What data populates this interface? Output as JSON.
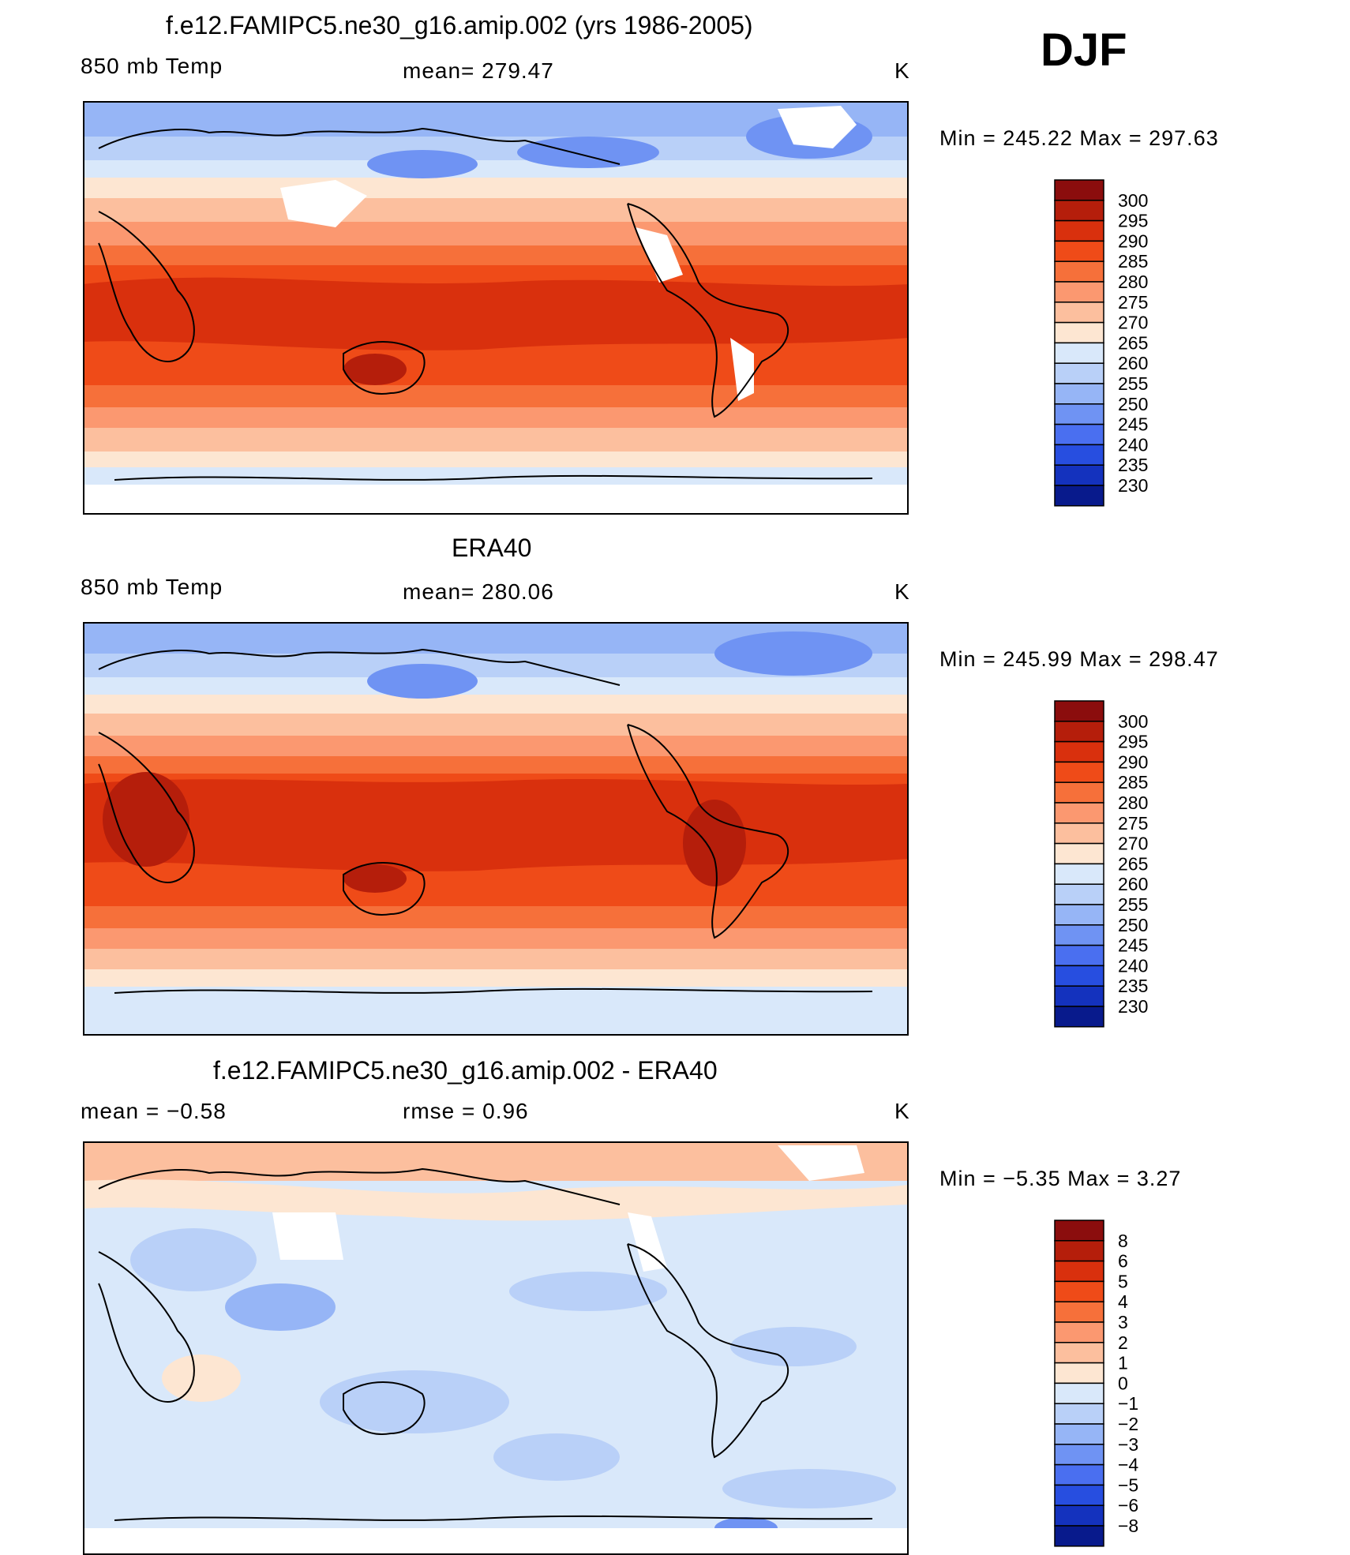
{
  "season": "DJF",
  "panels": [
    {
      "title": "f.e12.FAMIPC5.ne30_g16.amip.002 (yrs 1986-2005)",
      "left_label": "850 mb Temp",
      "center_label": "mean= 279.47",
      "units": "K",
      "min_max": "Min = 245.22 Max = 297.63",
      "colorbar": {
        "labels": [
          "300",
          "295",
          "290",
          "285",
          "280",
          "275",
          "270",
          "265",
          "260",
          "255",
          "250",
          "245",
          "240",
          "235",
          "230"
        ],
        "colors": [
          "#8b0d0d",
          "#b51e0b",
          "#d9300d",
          "#ef4b18",
          "#f6703a",
          "#fb9870",
          "#fcbf9e",
          "#fde6d2",
          "#d9e8fa",
          "#b9d0f8",
          "#96b5f6",
          "#6f93f3",
          "#4a6ff0",
          "#274ee0",
          "#1432be",
          "#081a8c"
        ]
      }
    },
    {
      "title": "ERA40",
      "left_label": "850 mb Temp",
      "center_label": "mean= 280.06",
      "units": "K",
      "min_max": "Min = 245.99 Max = 298.47",
      "colorbar": {
        "labels": [
          "300",
          "295",
          "290",
          "285",
          "280",
          "275",
          "270",
          "265",
          "260",
          "255",
          "250",
          "245",
          "240",
          "235",
          "230"
        ],
        "colors": [
          "#8b0d0d",
          "#b51e0b",
          "#d9300d",
          "#ef4b18",
          "#f6703a",
          "#fb9870",
          "#fcbf9e",
          "#fde6d2",
          "#d9e8fa",
          "#b9d0f8",
          "#96b5f6",
          "#6f93f3",
          "#4a6ff0",
          "#274ee0",
          "#1432be",
          "#081a8c"
        ]
      }
    },
    {
      "title": "f.e12.FAMIPC5.ne30_g16.amip.002 - ERA40",
      "left_label": "mean =   −0.58",
      "center_label": "rmse =    0.96",
      "units": "K",
      "min_max": "Min =   −5.35 Max =     3.27",
      "colorbar": {
        "labels": [
          "8",
          "6",
          "5",
          "4",
          "3",
          "2",
          "1",
          "0",
          "−1",
          "−2",
          "−3",
          "−4",
          "−5",
          "−6",
          "−8"
        ],
        "colors": [
          "#8b0d0d",
          "#b51e0b",
          "#d9300d",
          "#ef4b18",
          "#f6703a",
          "#fb9870",
          "#fcbf9e",
          "#fde6d2",
          "#d9e8fa",
          "#b9d0f8",
          "#96b5f6",
          "#6f93f3",
          "#4a6ff0",
          "#274ee0",
          "#1432be",
          "#081a8c"
        ]
      }
    }
  ]
}
